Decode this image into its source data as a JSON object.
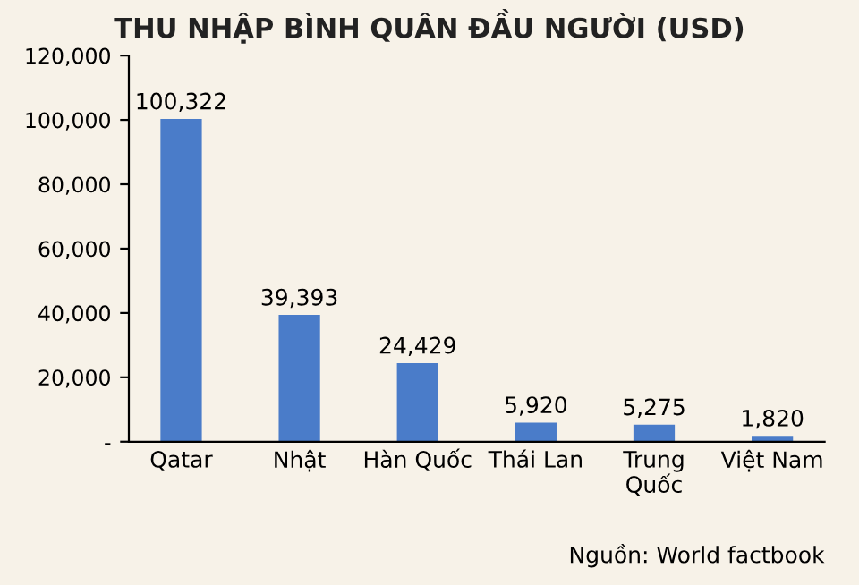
{
  "chart_data": {
    "type": "bar",
    "title": "THU NHẬP BÌNH QUÂN ĐẦU NGƯỜI (USD)",
    "categories": [
      "Qatar",
      "Nhật",
      "Hàn Quốc",
      "Thái Lan",
      "Trung\nQuốc",
      "Việt Nam"
    ],
    "values": [
      100322,
      39393,
      24429,
      5920,
      5275,
      1820
    ],
    "value_labels": [
      "100,322",
      "39,393",
      "24,429",
      "5,920",
      "5,275",
      "1,820"
    ],
    "color": "#4a7cc9",
    "ylim": [
      0,
      120000
    ],
    "yticks": [
      {
        "value": 0,
        "label": "-"
      },
      {
        "value": 20000,
        "label": "20,000"
      },
      {
        "value": 40000,
        "label": "40,000"
      },
      {
        "value": 60000,
        "label": "60,000"
      },
      {
        "value": 80000,
        "label": "80,000"
      },
      {
        "value": 100000,
        "label": "100,000"
      },
      {
        "value": 120000,
        "label": "120,000"
      }
    ],
    "grid": false,
    "annotations": [
      "Nguồn: World factbook"
    ]
  }
}
